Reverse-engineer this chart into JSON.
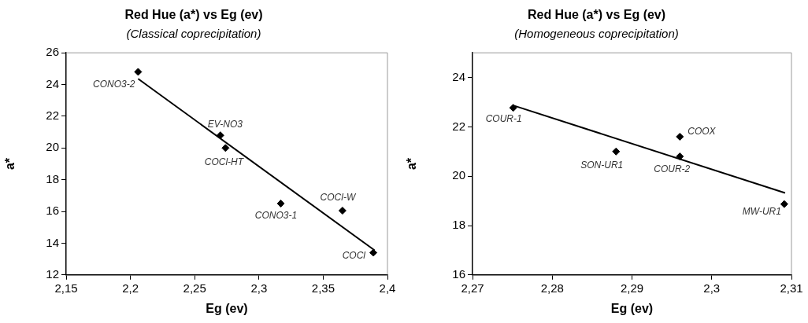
{
  "chart_data": [
    {
      "type": "scatter",
      "title": "Red Hue (a*) vs Eg (ev)",
      "subtitle": "(Classical coprecipitation)",
      "xlabel": "Eg (ev)",
      "ylabel": "a*",
      "xlim": [
        2.15,
        2.4
      ],
      "xticks": [
        {
          "value": 2.15,
          "label": "2,15"
        },
        {
          "value": 2.2,
          "label": "2,2"
        },
        {
          "value": 2.25,
          "label": "2,25"
        },
        {
          "value": 2.3,
          "label": "2,3"
        },
        {
          "value": 2.35,
          "label": "2,35"
        },
        {
          "value": 2.4,
          "label": "2,4"
        }
      ],
      "ylim": [
        12,
        26
      ],
      "yticks": [
        12,
        14,
        16,
        18,
        20,
        22,
        24,
        26
      ],
      "grid": false,
      "legend": false,
      "series": [
        {
          "marker": "diamond",
          "color": "#000000",
          "x": [
            2.206,
            2.27,
            2.274,
            2.317,
            2.365,
            2.389
          ],
          "values": [
            24.8,
            20.8,
            20.0,
            16.5,
            16.05,
            13.4
          ]
        },
        {
          "type": "line",
          "color": "#000000",
          "x": [
            2.206,
            2.39
          ],
          "values": [
            24.36,
            13.55
          ]
        }
      ],
      "annotations": [
        {
          "text": "CONO3-2",
          "x": 2.206,
          "y": 24.8
        },
        {
          "text": "EV-NO3",
          "x": 2.27,
          "y": 20.8
        },
        {
          "text": "COCl-HT",
          "x": 2.274,
          "y": 20.0
        },
        {
          "text": "CONO3-1",
          "x": 2.317,
          "y": 16.5
        },
        {
          "text": "COCl-W",
          "x": 2.365,
          "y": 16.05
        },
        {
          "text": "COCl",
          "x": 2.389,
          "y": 13.4
        }
      ]
    },
    {
      "type": "scatter",
      "title": "Red Hue (a*) vs Eg (ev)",
      "subtitle": "(Homogeneous coprecipitation)",
      "xlabel": "Eg (ev)",
      "ylabel": "a*",
      "xlim": [
        2.27,
        2.31
      ],
      "xticks": [
        {
          "value": 2.27,
          "label": "2,27"
        },
        {
          "value": 2.28,
          "label": "2,28"
        },
        {
          "value": 2.29,
          "label": "2,29"
        },
        {
          "value": 2.3,
          "label": "2,3"
        },
        {
          "value": 2.31,
          "label": "2,31"
        }
      ],
      "ylim": [
        16,
        25
      ],
      "yticks": [
        16,
        18,
        20,
        22,
        24
      ],
      "grid": false,
      "legend": false,
      "series": [
        {
          "marker": "diamond",
          "color": "#000000",
          "x": [
            2.2751,
            2.288,
            2.296,
            2.296,
            2.3091
          ],
          "values": [
            22.77,
            21.0,
            21.6,
            20.8,
            18.87
          ]
        },
        {
          "type": "line",
          "color": "#000000",
          "x": [
            2.2751,
            2.3092
          ],
          "values": [
            22.87,
            19.32
          ]
        }
      ],
      "annotations": [
        {
          "text": "COUR-1",
          "x": 2.2751,
          "y": 22.77
        },
        {
          "text": "SON-UR1",
          "x": 2.288,
          "y": 21.0
        },
        {
          "text": "COOX",
          "x": 2.296,
          "y": 21.6
        },
        {
          "text": "COUR-2",
          "x": 2.296,
          "y": 20.8
        },
        {
          "text": "MW-UR1",
          "x": 2.3091,
          "y": 18.87
        }
      ]
    }
  ]
}
